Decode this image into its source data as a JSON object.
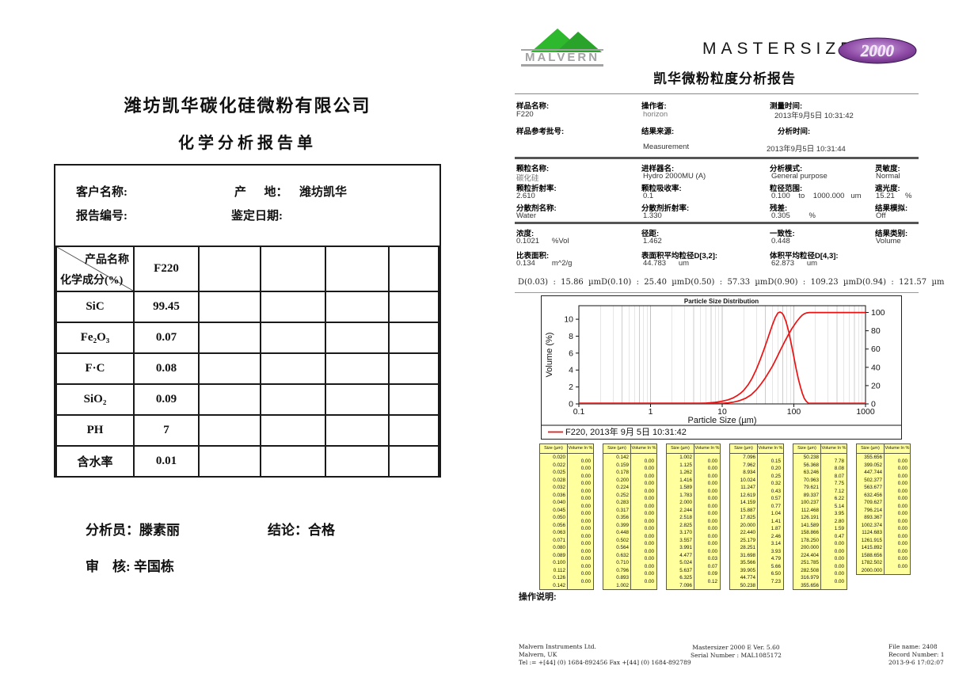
{
  "left_report": {
    "company": "潍坊凯华碳化硅微粉有限公司",
    "title": "化学分析报告单",
    "info": {
      "customer_label": "客户名称:",
      "origin_label": "产      地：",
      "origin_value": "潍坊凯华",
      "report_no_label": "报告编号:",
      "date_label": "鉴定日期:"
    },
    "table": {
      "header_diag_top": "产品名称",
      "header_diag_bottom": "化学成分(%)",
      "product": "F220",
      "empty_cols": 4,
      "rows": [
        {
          "name": "SiC",
          "value": "99.45"
        },
        {
          "name": "Fe₂O₃",
          "value": "0.07"
        },
        {
          "name": "F·C",
          "value": "0.08"
        },
        {
          "name": "SiO₂",
          "value": "0.09"
        },
        {
          "name": "PH",
          "value": "7"
        },
        {
          "name": "含水率",
          "value": "0.01"
        }
      ]
    },
    "analyst_label": "分析员：",
    "analyst": "滕素丽",
    "conclusion_label": "结论：",
    "conclusion": "合格",
    "reviewer_label": "审    核: ",
    "reviewer": "辛国栋"
  },
  "right_report": {
    "brand": {
      "malvern": "MALVERN",
      "product_word": "MASTERSIZER",
      "model": "2000"
    },
    "title": "凯华微粉粒度分析报告",
    "sample": {
      "name_label": "样品名称:",
      "name": "F220",
      "operator_label": "操作者:",
      "operator": "horizon",
      "measured_label": "测量时间:",
      "measured": "2013年9月5日 10:31:42",
      "batch_label": "样品参考批号:",
      "batch": "",
      "source_label": "结果来源:",
      "source": "Measurement",
      "analysed_label": "分析时间:",
      "analysed": "2013年9月5日 10:31:44"
    },
    "particle": {
      "name_label": "颗粒名称:",
      "name": "碳化硅",
      "accessory_label": "进样器名:",
      "accessory": "Hydro 2000MU (A)",
      "mode_label": "分析模式:",
      "mode": "General purpose",
      "sensitivity_label": "灵敏度:",
      "sensitivity": "Normal",
      "ri_label": "颗粒折射率:",
      "ri": "2.610",
      "absorption_label": "颗粒吸收率:",
      "absorption": "0.1",
      "range_label": "粒径范围:",
      "range": "0.100    to    1000.000   um",
      "obscuration_label": "遮光度:",
      "obscuration": "15.21     %",
      "dispersant_label": "分散剂名称:",
      "dispersant": "Water",
      "dispersant_ri_label": "分散剂折射率:",
      "dispersant_ri": "1.330",
      "residual_label": "残差:",
      "residual": "0.305         %",
      "snap_label": "结果模拟:",
      "snap": "Off"
    },
    "results": {
      "concentration_label": "浓度:",
      "concentration": "0.1021      %Vol",
      "span_label": "径距:",
      "span": "1.462",
      "uniformity_label": "一致性:",
      "uniformity": "0.448",
      "type_label": "结果类别:",
      "type": "Volume",
      "ssa_label": "比表面积:",
      "ssa": "0.134        m^2/g",
      "d32_label": "表面积平均粒径D[3,2]:",
      "d32": "44.783      um",
      "d43_label": "体积平均粒径D[4,3]:",
      "d43": "62.873      um"
    },
    "percentiles": [
      {
        "label": "D(0.03)",
        "value": "15.86",
        "unit": "µm"
      },
      {
        "label": "D(0.10)",
        "value": "25.40",
        "unit": "µm"
      },
      {
        "label": "D(0.50)",
        "value": "57.33",
        "unit": "µm"
      },
      {
        "label": "D(0.90)",
        "value": "109.23",
        "unit": "µm"
      },
      {
        "label": "D(0.94)",
        "value": "121.57",
        "unit": "µm"
      }
    ],
    "operation_note_label": "操作说明:"
  },
  "chart_data": {
    "type": "line",
    "title": "Particle Size Distribution",
    "xlabel": "Particle Size (µm)",
    "ylabel": "Volume (%)",
    "x_scale": "log",
    "xlim": [
      0.1,
      1000
    ],
    "x_tick_labels": [
      "0.1",
      "1",
      "10",
      "100",
      "1000"
    ],
    "y_left_ticks": [
      0,
      2,
      4,
      6,
      8,
      10
    ],
    "y_left_max": 11.6,
    "y_right_ticks": [
      0,
      20,
      40,
      60,
      80,
      100
    ],
    "right_axis_scale": 0.108,
    "grid": "vertical-log-minor",
    "line_color": "#ee1111",
    "legend": "F220, 2013年 9月 5日  10:31:42",
    "series": [
      {
        "name": "volume-frequency",
        "axis": "left",
        "points": [
          [
            0.1,
            0
          ],
          [
            3,
            0
          ],
          [
            4,
            0.02
          ],
          [
            5,
            0.05
          ],
          [
            6,
            0.09
          ],
          [
            7,
            0.14
          ],
          [
            8,
            0.19
          ],
          [
            9,
            0.25
          ],
          [
            10,
            0.32
          ],
          [
            12,
            0.48
          ],
          [
            14,
            0.68
          ],
          [
            16,
            0.95
          ],
          [
            18,
            1.25
          ],
          [
            20,
            1.6
          ],
          [
            23,
            2.25
          ],
          [
            26,
            3.0
          ],
          [
            30,
            4.1
          ],
          [
            34,
            5.25
          ],
          [
            38,
            6.35
          ],
          [
            42,
            7.4
          ],
          [
            46,
            8.4
          ],
          [
            50,
            9.3
          ],
          [
            55,
            10.2
          ],
          [
            60,
            10.75
          ],
          [
            64,
            10.85
          ],
          [
            68,
            10.75
          ],
          [
            72,
            10.45
          ],
          [
            78,
            9.7
          ],
          [
            85,
            8.5
          ],
          [
            92,
            7.1
          ],
          [
            100,
            5.55
          ],
          [
            108,
            4.1
          ],
          [
            116,
            2.9
          ],
          [
            124,
            1.95
          ],
          [
            132,
            1.2
          ],
          [
            140,
            0.65
          ],
          [
            150,
            0.28
          ],
          [
            160,
            0.08
          ],
          [
            172,
            0.01
          ],
          [
            185,
            0
          ],
          [
            1000,
            0
          ]
        ]
      },
      {
        "name": "cumulative-undersize",
        "axis": "right",
        "points": [
          [
            0.1,
            0
          ],
          [
            6,
            0
          ],
          [
            8,
            0.2
          ],
          [
            10,
            0.6
          ],
          [
            12,
            1.1
          ],
          [
            14,
            1.8
          ],
          [
            16,
            2.8
          ],
          [
            18,
            4.0
          ],
          [
            21,
            6.0
          ],
          [
            25.4,
            10
          ],
          [
            30,
            15.5
          ],
          [
            35,
            22
          ],
          [
            40,
            28.5
          ],
          [
            45,
            35
          ],
          [
            50,
            41
          ],
          [
            57.3,
            50
          ],
          [
            65,
            59
          ],
          [
            75,
            68.5
          ],
          [
            85,
            76.5
          ],
          [
            95,
            83
          ],
          [
            109.2,
            90
          ],
          [
            120,
            94
          ],
          [
            130,
            96.8
          ],
          [
            140,
            98.6
          ],
          [
            150,
            99.5
          ],
          [
            165,
            100
          ],
          [
            1000,
            100
          ]
        ]
      }
    ],
    "percentiles_um": {
      "D(0.03)": 15.86,
      "D(0.10)": 25.4,
      "D(0.50)": 57.33,
      "D(0.90)": 109.23,
      "D(0.94)": 121.57
    }
  },
  "size_table": {
    "size_header": "Size (µm)",
    "volume_header": "Volume In %",
    "columns": [
      {
        "sizes": [
          "0.020",
          "0.022",
          "0.025",
          "0.028",
          "0.032",
          "0.036",
          "0.040",
          "0.045",
          "0.050",
          "0.056",
          "0.063",
          "0.071",
          "0.080",
          "0.089",
          "0.100",
          "0.112",
          "0.126",
          "0.142"
        ],
        "volumes": [
          "0.00",
          "0.00",
          "0.00",
          "0.00",
          "0.00",
          "0.00",
          "0.00",
          "0.00",
          "0.00",
          "0.00",
          "0.00",
          "0.00",
          "0.00",
          "0.00",
          "0.00",
          "0.00",
          "0.00"
        ]
      },
      {
        "sizes": [
          "0.142",
          "0.159",
          "0.178",
          "0.200",
          "0.224",
          "0.252",
          "0.283",
          "0.317",
          "0.356",
          "0.399",
          "0.448",
          "0.502",
          "0.564",
          "0.632",
          "0.710",
          "0.796",
          "0.893",
          "1.002"
        ],
        "volumes": [
          "0.00",
          "0.00",
          "0.00",
          "0.00",
          "0.00",
          "0.00",
          "0.00",
          "0.00",
          "0.00",
          "0.00",
          "0.00",
          "0.00",
          "0.00",
          "0.00",
          "0.00",
          "0.00",
          "0.00"
        ]
      },
      {
        "sizes": [
          "1.002",
          "1.125",
          "1.262",
          "1.416",
          "1.589",
          "1.783",
          "2.000",
          "2.244",
          "2.518",
          "2.825",
          "3.170",
          "3.557",
          "3.991",
          "4.477",
          "5.024",
          "5.637",
          "6.325",
          "7.096"
        ],
        "volumes": [
          "0.00",
          "0.00",
          "0.00",
          "0.00",
          "0.00",
          "0.00",
          "0.00",
          "0.00",
          "0.00",
          "0.00",
          "0.00",
          "0.00",
          "0.00",
          "0.03",
          "0.07",
          "0.09",
          "0.12"
        ]
      },
      {
        "sizes": [
          "7.096",
          "7.962",
          "8.934",
          "10.024",
          "11.247",
          "12.619",
          "14.159",
          "15.887",
          "17.825",
          "20.000",
          "22.440",
          "25.179",
          "28.251",
          "31.698",
          "35.566",
          "39.905",
          "44.774",
          "50.238"
        ],
        "volumes": [
          "0.15",
          "0.20",
          "0.25",
          "0.32",
          "0.43",
          "0.57",
          "0.77",
          "1.04",
          "1.41",
          "1.87",
          "2.46",
          "3.14",
          "3.93",
          "4.79",
          "5.66",
          "6.50",
          "7.23"
        ]
      },
      {
        "sizes": [
          "50.238",
          "56.368",
          "63.246",
          "70.963",
          "79.621",
          "89.337",
          "100.237",
          "112.468",
          "126.191",
          "141.589",
          "158.866",
          "178.250",
          "200.000",
          "224.404",
          "251.785",
          "282.508",
          "316.979",
          "355.656"
        ],
        "volumes": [
          "7.78",
          "8.08",
          "8.07",
          "7.75",
          "7.12",
          "6.22",
          "5.14",
          "3.95",
          "2.80",
          "1.59",
          "0.47",
          "0.00",
          "0.00",
          "0.00",
          "0.00",
          "0.00",
          "0.00"
        ]
      },
      {
        "sizes": [
          "355.656",
          "399.052",
          "447.744",
          "502.377",
          "563.677",
          "632.456",
          "709.627",
          "796.214",
          "893.367",
          "1002.374",
          "1124.683",
          "1261.915",
          "1415.892",
          "1588.656",
          "1782.502",
          "2000.000"
        ],
        "volumes": [
          "0.00",
          "0.00",
          "0.00",
          "0.00",
          "0.00",
          "0.00",
          "0.00",
          "0.00",
          "0.00",
          "0.00",
          "0.00",
          "0.00",
          "0.00",
          "0.00",
          "0.00"
        ]
      }
    ]
  },
  "footer": {
    "left_lines": [
      "Malvern Instruments Ltd.",
      "Malvern, UK",
      "Tel := +[44] (0) 1684-892456 Fax +[44] (0) 1684-892789"
    ],
    "center_lines": [
      "Mastersizer 2000 E Ver. 5.60",
      "Serial Number : MAL1085172"
    ],
    "right_lines": [
      "File name: 2408",
      "Record Number: 1",
      "2013-9-6 17:02:07"
    ]
  }
}
